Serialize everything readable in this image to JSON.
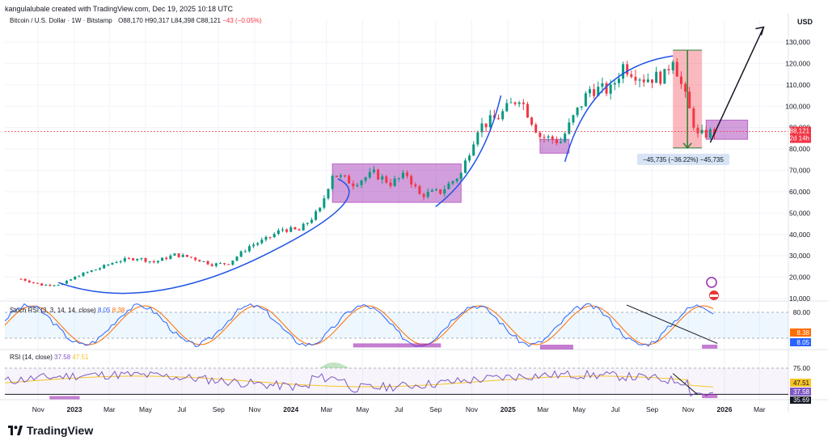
{
  "header": {
    "text": "kangulalubale created with TradingView.com, Dec 19, 2025 10:18 UTC"
  },
  "legend": {
    "symbol": "Bitcoin / U.S. Dollar · 1W · Bitstamp",
    "open": "O88,170",
    "high": "H90,317",
    "low": "L84,398",
    "close": "C88,121",
    "change": "−43 (−0.05%)"
  },
  "price_axis": {
    "currency": "USD",
    "ticks": [
      "130,000",
      "120,000",
      "110,000",
      "100,000",
      "90,000",
      "80,000",
      "70,000",
      "60,000",
      "50,000",
      "40,000",
      "30,000",
      "20,000",
      "10,000"
    ],
    "last_price": "88,121",
    "countdown": "2d 14h"
  },
  "measure_label": "−45,735 (−36.22%) −45,735",
  "stoch": {
    "title": "Stoch RSI (3, 3, 14, 14, close)",
    "k_value": "8.05",
    "d_value": "8.38",
    "ticks": [
      "80.00",
      "20.00"
    ],
    "badge_d": "8.38",
    "badge_k": "8.05"
  },
  "rsi": {
    "title": "RSI (14, close)",
    "rsi_value": "37.58",
    "ma_value": "47.51",
    "ticks": [
      "75.00"
    ],
    "badge_ma": "47.51",
    "badge_rsi": "37.58",
    "badge_low": "35.69"
  },
  "time_axis": [
    "Nov",
    "2023",
    "Mar",
    "May",
    "Jul",
    "Sep",
    "Nov",
    "2024",
    "Mar",
    "May",
    "Jul",
    "Sep",
    "Nov",
    "2025",
    "Mar",
    "May",
    "Jul",
    "Sep",
    "Nov",
    "2026",
    "Mar"
  ],
  "brand": {
    "name": "TradingView"
  },
  "colors": {
    "up": "#089981",
    "down": "#f23645",
    "curve": "#1e53e5",
    "zone": "#9c27b0",
    "stoch_k": "#2962ff",
    "stoch_d": "#ff6d00",
    "rsi": "#7e57c2",
    "rsi_ma": "#f7c325"
  },
  "chart_data": {
    "type": "candlestick",
    "title": "Bitcoin / U.S. Dollar · 1W · Bitstamp",
    "ylabel": "USD",
    "y_scale": "linear",
    "ylim": [
      10000,
      135000
    ],
    "x_range": [
      "2022-10",
      "2026-03"
    ],
    "weekly_close_approx": [
      {
        "date": "2022-10-03",
        "close": 19200
      },
      {
        "date": "2022-11-07",
        "close": 16300
      },
      {
        "date": "2022-12-12",
        "close": 16800
      },
      {
        "date": "2023-01-09",
        "close": 21000
      },
      {
        "date": "2023-02-13",
        "close": 24300
      },
      {
        "date": "2023-03-13",
        "close": 27500
      },
      {
        "date": "2023-04-17",
        "close": 29000
      },
      {
        "date": "2023-05-15",
        "close": 27000
      },
      {
        "date": "2023-06-19",
        "close": 30500
      },
      {
        "date": "2023-07-17",
        "close": 29200
      },
      {
        "date": "2023-08-21",
        "close": 26000
      },
      {
        "date": "2023-09-18",
        "close": 26500
      },
      {
        "date": "2023-10-23",
        "close": 34500
      },
      {
        "date": "2023-11-20",
        "close": 37700
      },
      {
        "date": "2023-12-18",
        "close": 42500
      },
      {
        "date": "2024-01-15",
        "close": 41800
      },
      {
        "date": "2024-02-19",
        "close": 51500
      },
      {
        "date": "2024-03-11",
        "close": 68500
      },
      {
        "date": "2024-04-15",
        "close": 64000
      },
      {
        "date": "2024-05-20",
        "close": 68500
      },
      {
        "date": "2024-06-17",
        "close": 64000
      },
      {
        "date": "2024-07-15",
        "close": 68000
      },
      {
        "date": "2024-08-05",
        "close": 58500
      },
      {
        "date": "2024-09-09",
        "close": 60000
      },
      {
        "date": "2024-10-14",
        "close": 68500
      },
      {
        "date": "2024-11-11",
        "close": 90000
      },
      {
        "date": "2024-12-16",
        "close": 95000
      },
      {
        "date": "2025-01-20",
        "close": 104500
      },
      {
        "date": "2025-02-24",
        "close": 86000
      },
      {
        "date": "2025-03-31",
        "close": 83500
      },
      {
        "date": "2025-04-21",
        "close": 94500
      },
      {
        "date": "2025-05-19",
        "close": 108000
      },
      {
        "date": "2025-06-23",
        "close": 107500
      },
      {
        "date": "2025-07-14",
        "close": 119000
      },
      {
        "date": "2025-08-18",
        "close": 113000
      },
      {
        "date": "2025-09-22",
        "close": 114000
      },
      {
        "date": "2025-10-06",
        "close": 123500
      },
      {
        "date": "2025-10-20",
        "close": 110000
      },
      {
        "date": "2025-11-17",
        "close": 86000
      },
      {
        "date": "2025-12-15",
        "close": 88121
      }
    ],
    "annotations": {
      "measure": {
        "from": 126200,
        "to": 80465,
        "change": -45735,
        "pct": -36.22
      },
      "zones": [
        {
          "from": "2024-03-11",
          "to": "2024-10-14",
          "low": 55000,
          "high": 73000
        },
        {
          "from": "2025-02-24",
          "to": "2025-04-14",
          "low": 78000,
          "high": 84500
        },
        {
          "from": "2025-12-01",
          "to": "2026-02-09",
          "low": 84500,
          "high": 93500
        }
      ]
    },
    "stoch_rsi": {
      "k": 8.05,
      "d": 8.38,
      "levels": [
        80,
        20
      ]
    },
    "rsi": {
      "value": 37.58,
      "ma": 47.51,
      "levels": [
        75,
        35.69
      ]
    }
  }
}
